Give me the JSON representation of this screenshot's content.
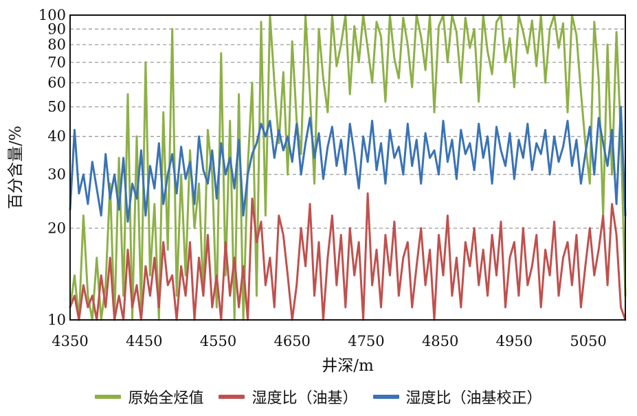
{
  "chart_data": {
    "type": "line",
    "title": "",
    "xlabel": "井深/m",
    "ylabel": "百分含量/%",
    "xlim": [
      4350,
      5100
    ],
    "ylim": [
      10,
      100
    ],
    "yscale": "log",
    "grid": "horizontal dashed",
    "legend_position": "bottom",
    "x_ticks": [
      4350,
      4450,
      4550,
      4650,
      4750,
      4850,
      4950,
      5050
    ],
    "x_tick_labels": [
      "4350",
      "4450",
      "4550",
      "4650",
      "4750",
      "4850",
      "4950",
      "5050"
    ],
    "y_ticks": [
      10,
      20,
      30,
      40,
      50,
      60,
      70,
      80,
      90,
      100
    ],
    "y_tick_labels": [
      "10",
      "20",
      "30",
      "40",
      "50",
      "60",
      "70",
      "80",
      "90",
      "100"
    ],
    "series": [
      {
        "name": "原始全烃值",
        "color": "#8db046",
        "x": [
          4350,
          4356,
          4362,
          4368,
          4374,
          4380,
          4386,
          4392,
          4398,
          4404,
          4410,
          4416,
          4422,
          4428,
          4434,
          4440,
          4446,
          4452,
          4458,
          4464,
          4470,
          4476,
          4482,
          4488,
          4494,
          4500,
          4506,
          4512,
          4518,
          4524,
          4530,
          4536,
          4542,
          4548,
          4554,
          4560,
          4566,
          4572,
          4578,
          4584,
          4590,
          4596,
          4602,
          4608,
          4614,
          4620,
          4626,
          4632,
          4638,
          4644,
          4650,
          4656,
          4662,
          4668,
          4674,
          4680,
          4686,
          4692,
          4698,
          4704,
          4710,
          4716,
          4722,
          4728,
          4734,
          4740,
          4746,
          4752,
          4758,
          4764,
          4770,
          4776,
          4782,
          4788,
          4794,
          4800,
          4806,
          4812,
          4818,
          4824,
          4830,
          4836,
          4842,
          4848,
          4854,
          4860,
          4866,
          4872,
          4878,
          4884,
          4890,
          4896,
          4902,
          4908,
          4914,
          4920,
          4926,
          4932,
          4938,
          4944,
          4950,
          4956,
          4962,
          4968,
          4974,
          4980,
          4986,
          4992,
          4998,
          5004,
          5010,
          5016,
          5022,
          5028,
          5034,
          5040,
          5046,
          5052,
          5058,
          5064,
          5070,
          5076,
          5082,
          5088,
          5094,
          5100
        ],
        "values": [
          11,
          14,
          10,
          22,
          12,
          10,
          16,
          10,
          13,
          28,
          10,
          34,
          12,
          55,
          10,
          40,
          11,
          70,
          14,
          24,
          10,
          48,
          17,
          90,
          12,
          30,
          14,
          36,
          20,
          28,
          12,
          42,
          30,
          11,
          75,
          14,
          45,
          10,
          55,
          10,
          32,
          60,
          12,
          95,
          22,
          100,
          60,
          38,
          65,
          30,
          82,
          45,
          35,
          100,
          55,
          28,
          90,
          62,
          48,
          100,
          68,
          80,
          100,
          55,
          92,
          70,
          100,
          78,
          60,
          95,
          85,
          52,
          100,
          72,
          62,
          98,
          80,
          58,
          100,
          85,
          66,
          100,
          48,
          92,
          100,
          70,
          100,
          88,
          60,
          98,
          78,
          90,
          52,
          100,
          76,
          64,
          95,
          100,
          70,
          84,
          58,
          100,
          88,
          75,
          96,
          68,
          100,
          60,
          90,
          100,
          78,
          94,
          48,
          100,
          86,
          56,
          38,
          28,
          95,
          62,
          22,
          80,
          30,
          88,
          40,
          12
        ]
      },
      {
        "name": "湿度比（油基）",
        "color": "#c0504d",
        "x": [
          4350,
          4356,
          4362,
          4368,
          4374,
          4380,
          4386,
          4392,
          4398,
          4404,
          4410,
          4416,
          4422,
          4428,
          4434,
          4440,
          4446,
          4452,
          4458,
          4464,
          4470,
          4476,
          4482,
          4488,
          4494,
          4500,
          4506,
          4512,
          4518,
          4524,
          4530,
          4536,
          4542,
          4548,
          4554,
          4560,
          4566,
          4572,
          4578,
          4584,
          4590,
          4596,
          4602,
          4608,
          4614,
          4620,
          4626,
          4632,
          4638,
          4644,
          4650,
          4656,
          4662,
          4668,
          4674,
          4680,
          4686,
          4692,
          4698,
          4704,
          4710,
          4716,
          4722,
          4728,
          4734,
          4740,
          4746,
          4752,
          4758,
          4764,
          4770,
          4776,
          4782,
          4788,
          4794,
          4800,
          4806,
          4812,
          4818,
          4824,
          4830,
          4836,
          4842,
          4848,
          4854,
          4860,
          4866,
          4872,
          4878,
          4884,
          4890,
          4896,
          4902,
          4908,
          4914,
          4920,
          4926,
          4932,
          4938,
          4944,
          4950,
          4956,
          4962,
          4968,
          4974,
          4980,
          4986,
          4992,
          4998,
          5004,
          5010,
          5016,
          5022,
          5028,
          5034,
          5040,
          5046,
          5052,
          5058,
          5064,
          5070,
          5076,
          5082,
          5088,
          5094,
          5100
        ],
        "values": [
          11,
          12,
          10,
          13,
          11,
          12,
          10,
          14,
          11,
          16,
          10,
          12,
          10,
          17,
          11,
          13,
          10,
          15,
          12,
          16,
          11,
          18,
          13,
          14,
          10,
          15,
          12,
          18,
          10,
          16,
          12,
          19,
          11,
          14,
          10,
          18,
          12,
          16,
          11,
          15,
          10,
          25,
          18,
          21,
          13,
          16,
          11,
          22,
          19,
          14,
          10,
          13,
          20,
          15,
          24,
          12,
          18,
          10,
          16,
          22,
          13,
          19,
          11,
          20,
          14,
          18,
          10,
          26,
          13,
          17,
          11,
          19,
          14,
          21,
          12,
          16,
          18,
          11,
          15,
          20,
          13,
          17,
          10,
          19,
          14,
          22,
          12,
          16,
          11,
          18,
          15,
          20,
          13,
          17,
          12,
          19,
          14,
          21,
          11,
          16,
          18,
          12,
          20,
          13,
          15,
          19,
          11,
          17,
          14,
          21,
          12,
          16,
          18,
          13,
          19,
          11,
          15,
          20,
          14,
          17,
          22,
          13,
          24,
          19,
          11,
          10
        ]
      },
      {
        "name": "湿度比（油基校正）",
        "color": "#3a72b5",
        "x": [
          4350,
          4356,
          4362,
          4368,
          4374,
          4380,
          4386,
          4392,
          4398,
          4404,
          4410,
          4416,
          4422,
          4428,
          4434,
          4440,
          4446,
          4452,
          4458,
          4464,
          4470,
          4476,
          4482,
          4488,
          4494,
          4500,
          4506,
          4512,
          4518,
          4524,
          4530,
          4536,
          4542,
          4548,
          4554,
          4560,
          4566,
          4572,
          4578,
          4584,
          4590,
          4596,
          4602,
          4608,
          4614,
          4620,
          4626,
          4632,
          4638,
          4644,
          4650,
          4656,
          4662,
          4668,
          4674,
          4680,
          4686,
          4692,
          4698,
          4704,
          4710,
          4716,
          4722,
          4728,
          4734,
          4740,
          4746,
          4752,
          4758,
          4764,
          4770,
          4776,
          4782,
          4788,
          4794,
          4800,
          4806,
          4812,
          4818,
          4824,
          4830,
          4836,
          4842,
          4848,
          4854,
          4860,
          4866,
          4872,
          4878,
          4884,
          4890,
          4896,
          4902,
          4908,
          4914,
          4920,
          4926,
          4932,
          4938,
          4944,
          4950,
          4956,
          4962,
          4968,
          4974,
          4980,
          4986,
          4992,
          4998,
          5004,
          5010,
          5016,
          5022,
          5028,
          5034,
          5040,
          5046,
          5052,
          5058,
          5064,
          5070,
          5076,
          5082,
          5088,
          5094,
          5100
        ],
        "values": [
          23,
          42,
          26,
          30,
          24,
          33,
          27,
          22,
          35,
          25,
          30,
          23,
          34,
          21,
          28,
          25,
          36,
          22,
          32,
          27,
          38,
          24,
          30,
          35,
          26,
          37,
          29,
          33,
          24,
          40,
          31,
          28,
          36,
          25,
          38,
          30,
          34,
          27,
          39,
          22,
          30,
          35,
          38,
          44,
          40,
          45,
          34,
          42,
          36,
          40,
          33,
          44,
          30,
          38,
          46,
          34,
          41,
          29,
          37,
          43,
          32,
          39,
          30,
          44,
          35,
          27,
          40,
          33,
          45,
          31,
          38,
          28,
          42,
          34,
          37,
          30,
          44,
          32,
          39,
          28,
          41,
          34,
          36,
          30,
          45,
          33,
          39,
          29,
          42,
          35,
          38,
          31,
          44,
          34,
          40,
          28,
          43,
          36,
          32,
          41,
          29,
          39,
          34,
          44,
          31,
          38,
          35,
          42,
          30,
          40,
          33,
          37,
          45,
          32,
          39,
          28,
          35,
          43,
          30,
          46,
          38,
          32,
          42,
          24,
          50,
          22
        ]
      }
    ]
  }
}
